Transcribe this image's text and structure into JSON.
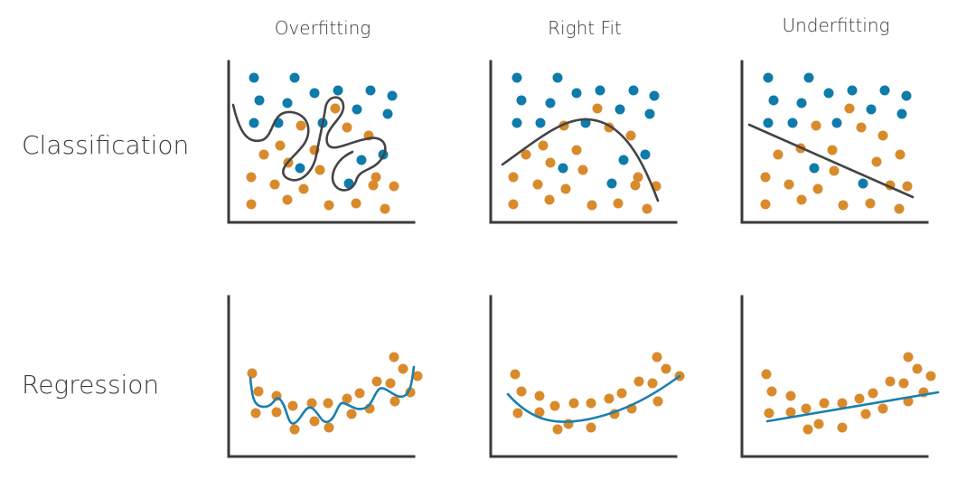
{
  "columns": [
    "Overfitting",
    "Right Fit",
    "Underfitting"
  ],
  "rows": [
    "Classification",
    "Regression"
  ],
  "colors": {
    "class_a": "#0f7bab",
    "class_b": "#d98a2b",
    "boundary": "#444444",
    "regression_curve": "#1a7fb0",
    "axis": "#3a3a3a"
  }
}
